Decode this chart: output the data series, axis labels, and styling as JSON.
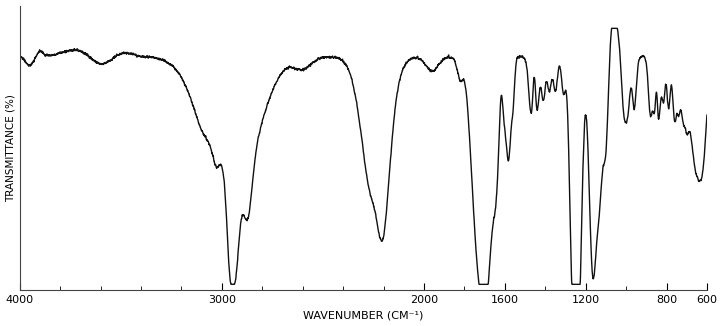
{
  "title": "",
  "xlabel": "WAVENUMBER (CM⁻¹)",
  "ylabel": "TRANSMITTANCE (%)",
  "xmin": 4000,
  "xmax": 600,
  "ymin": 0,
  "ymax": 100,
  "xticks": [
    4000,
    3000,
    2000,
    1600,
    1200,
    800,
    600
  ],
  "background_color": "#ffffff",
  "line_color": "#111111",
  "line_width": 1.0,
  "figsize": [
    7.23,
    3.26
  ],
  "dpi": 100
}
